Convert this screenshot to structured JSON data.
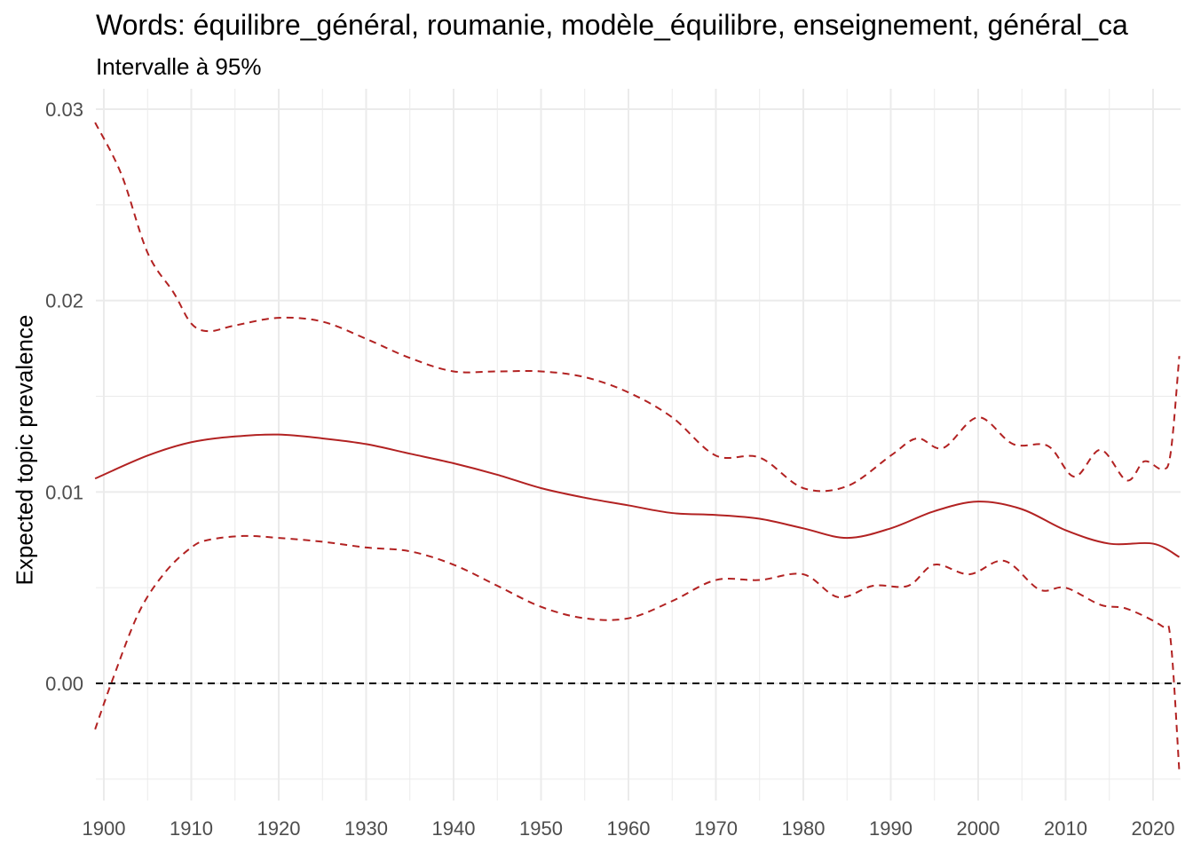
{
  "chart_data": {
    "type": "line",
    "title": "Words: équilibre_général, roumanie, modèle_équilibre, enseignement, général_ca",
    "subtitle": "Intervalle à 95%",
    "xlabel": "",
    "ylabel": "Expected topic prevalence",
    "xlim": [
      1899,
      2023
    ],
    "ylim": [
      -0.0063,
      0.0305
    ],
    "xticks": [
      1900,
      1910,
      1920,
      1930,
      1940,
      1950,
      1960,
      1970,
      1980,
      1990,
      2000,
      2010,
      2020
    ],
    "xtick_labels": [
      "1900",
      "1910",
      "1920",
      "1930",
      "1940",
      "1950",
      "1960",
      "1970",
      "1980",
      "1990",
      "2000",
      "2010",
      "2020"
    ],
    "yticks": [
      0,
      0.01,
      0.02,
      0.03
    ],
    "ytick_labels": [
      "0.00",
      "0.01",
      "0.02",
      "0.03"
    ],
    "grid": true,
    "reference_line": 0,
    "colors": {
      "series": "#b22222",
      "reference": "#000000",
      "grid": "#ebebeb"
    },
    "series": [
      {
        "name": "estimate",
        "style": "solid",
        "x": [
          1899,
          1905,
          1910,
          1915,
          1920,
          1925,
          1930,
          1935,
          1940,
          1945,
          1950,
          1955,
          1960,
          1965,
          1970,
          1975,
          1980,
          1985,
          1990,
          1995,
          2000,
          2005,
          2010,
          2015,
          2020,
          2023
        ],
        "y": [
          0.0107,
          0.0119,
          0.0126,
          0.0129,
          0.013,
          0.0128,
          0.0125,
          0.012,
          0.0115,
          0.0109,
          0.0102,
          0.0097,
          0.0093,
          0.0089,
          0.0088,
          0.0086,
          0.0081,
          0.0076,
          0.0081,
          0.009,
          0.0095,
          0.0091,
          0.008,
          0.0073,
          0.0073,
          0.0066
        ]
      },
      {
        "name": "upper 95%",
        "style": "dashed",
        "x": [
          1899,
          1902,
          1905,
          1908,
          1910,
          1912,
          1915,
          1920,
          1925,
          1930,
          1935,
          1940,
          1945,
          1950,
          1955,
          1960,
          1965,
          1970,
          1975,
          1980,
          1985,
          1990,
          1993,
          1996,
          2000,
          2004,
          2008,
          2011,
          2014,
          2017,
          2019,
          2021,
          2022,
          2023
        ],
        "y": [
          0.0293,
          0.0266,
          0.0225,
          0.0204,
          0.0188,
          0.0184,
          0.0187,
          0.0191,
          0.0189,
          0.018,
          0.017,
          0.0163,
          0.0163,
          0.0163,
          0.016,
          0.0152,
          0.0139,
          0.0119,
          0.0118,
          0.0102,
          0.0103,
          0.0119,
          0.0128,
          0.0123,
          0.0139,
          0.0125,
          0.0124,
          0.0108,
          0.0122,
          0.0106,
          0.0116,
          0.0112,
          0.012,
          0.0171
        ]
      },
      {
        "name": "lower 95%",
        "style": "dashed",
        "x": [
          1899,
          1901,
          1904,
          1907,
          1910,
          1912,
          1916,
          1920,
          1925,
          1930,
          1935,
          1940,
          1945,
          1950,
          1955,
          1960,
          1965,
          1970,
          1975,
          1980,
          1984,
          1988,
          1992,
          1995,
          1999,
          2003,
          2007,
          2010,
          2014,
          2017,
          2021,
          2022,
          2023
        ],
        "y": [
          -0.0024,
          0.0002,
          0.0037,
          0.0058,
          0.0071,
          0.0075,
          0.0077,
          0.0076,
          0.0074,
          0.0071,
          0.0069,
          0.0062,
          0.0051,
          0.004,
          0.0034,
          0.0034,
          0.0043,
          0.0054,
          0.0054,
          0.0057,
          0.0045,
          0.0051,
          0.0051,
          0.0062,
          0.0057,
          0.0064,
          0.0049,
          0.005,
          0.0041,
          0.0039,
          0.003,
          0.0023,
          -0.0046
        ]
      }
    ]
  }
}
